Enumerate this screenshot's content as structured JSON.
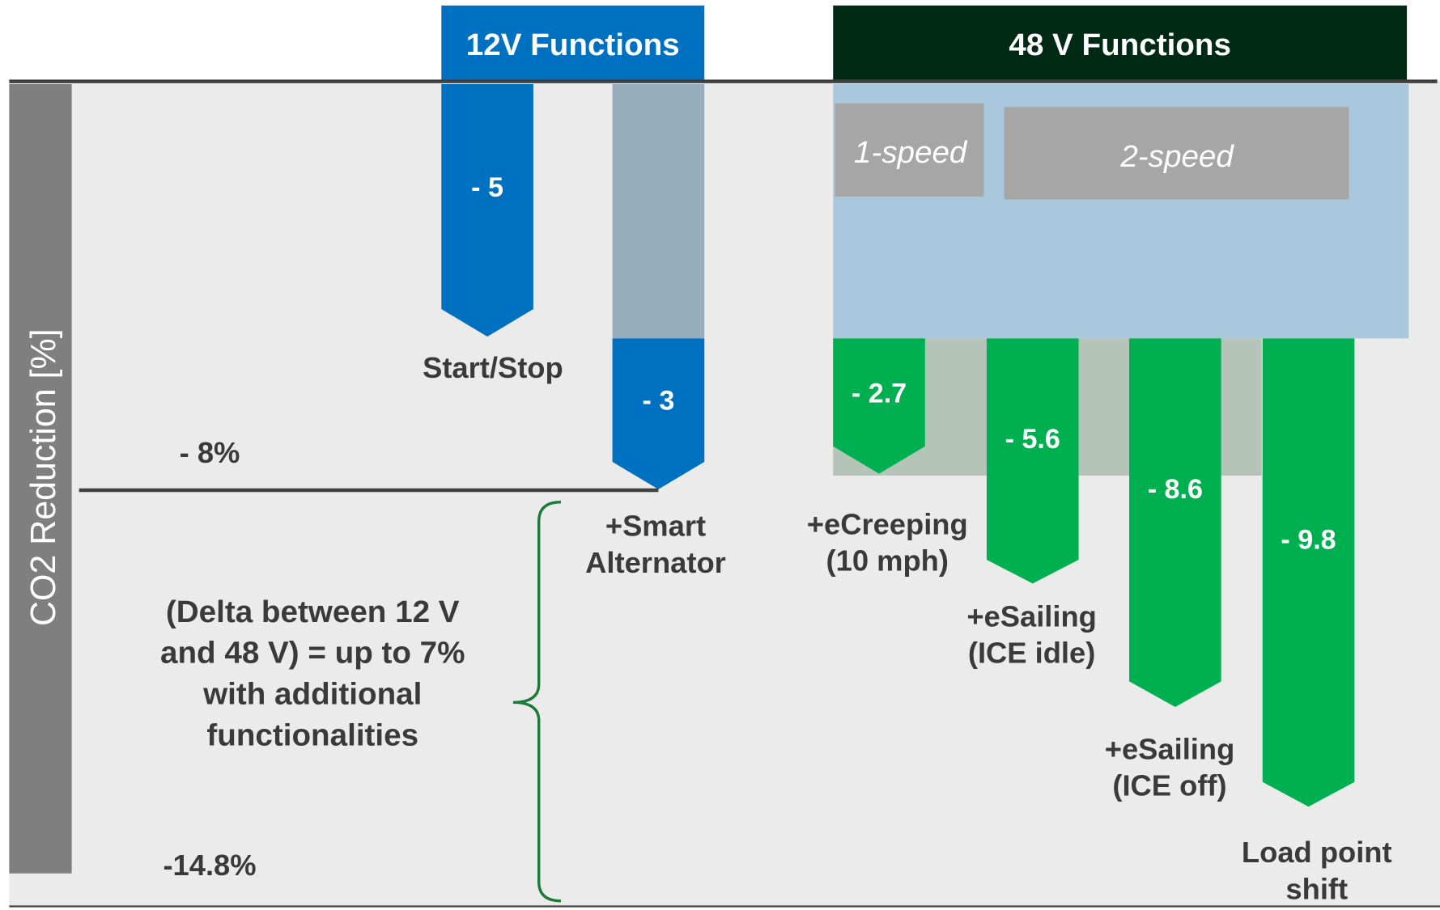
{
  "y_axis_label": "CO2 Reduction [%]",
  "groups": [
    {
      "title": "12V Functions"
    },
    {
      "title": "48 V Functions"
    }
  ],
  "gearbox": [
    "1-speed",
    "2-speed"
  ],
  "functions": [
    {
      "value": "- 5",
      "label": [
        "Start/Stop"
      ]
    },
    {
      "value": "- 3",
      "label": [
        "+Smart",
        "Alternator"
      ]
    },
    {
      "value": "- 2.7",
      "label": [
        "+eCreeping",
        "(10 mph)"
      ]
    },
    {
      "value": "- 5.6",
      "label": [
        "+eSailing",
        "(ICE idle)"
      ]
    },
    {
      "value": "- 8.6",
      "label": [
        "+eSailing",
        "(ICE off)"
      ]
    },
    {
      "value": "- 9.8",
      "label": [
        "Load point",
        "shift"
      ]
    }
  ],
  "levels": [
    "- 8%",
    "-14.8%"
  ],
  "note": [
    "(Delta between 12 V",
    "and 48 V) = up to 7%",
    "with additional",
    "functionalities"
  ]
}
